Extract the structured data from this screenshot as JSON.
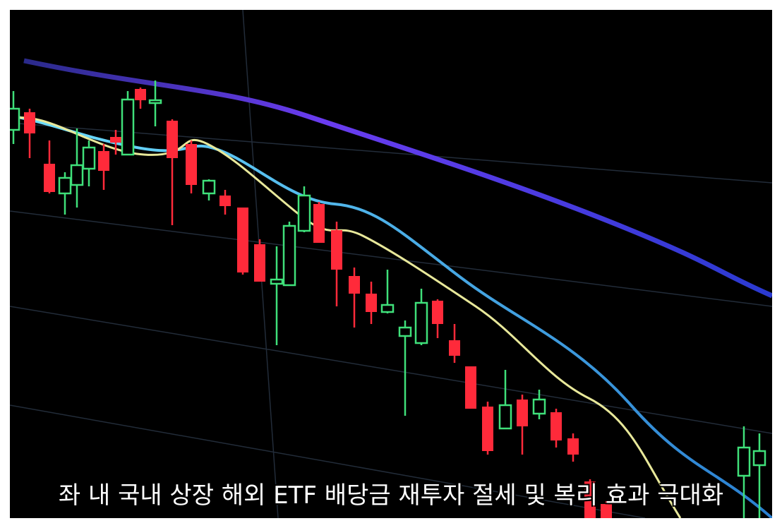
{
  "caption": "좌 내 국내 상장 해외 ETF 배당금 재투자 절세 및 복리 효과 극대화"
}
